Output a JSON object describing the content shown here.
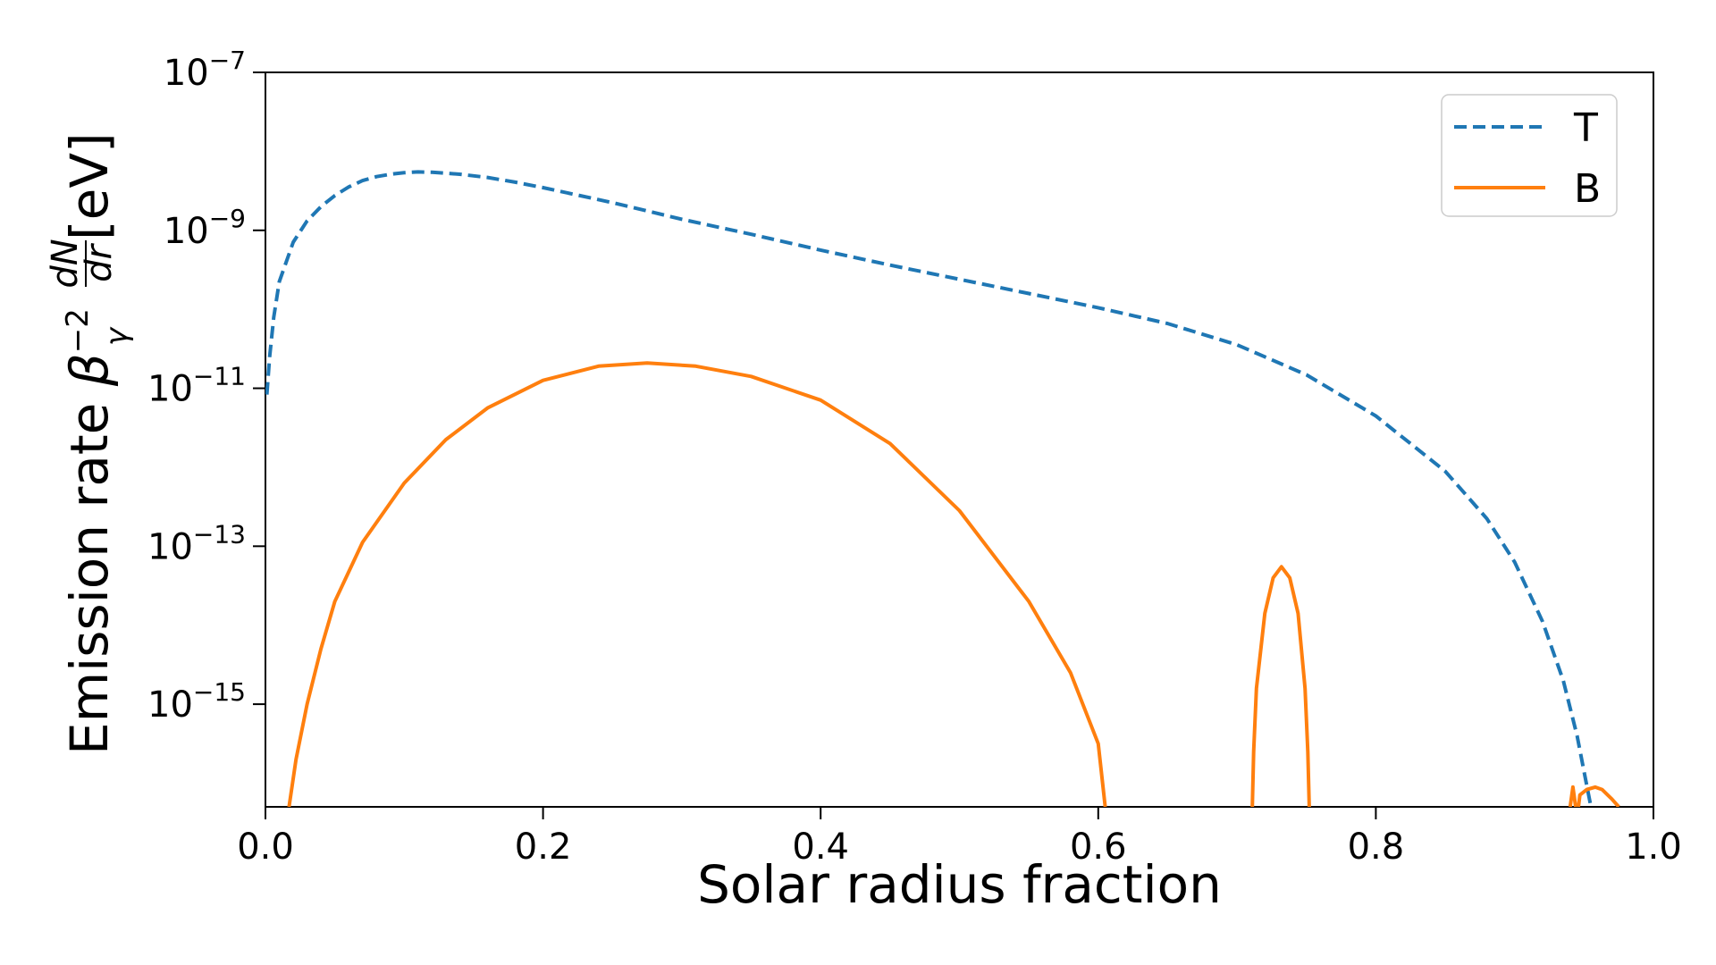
{
  "chart_data": {
    "type": "line",
    "title": "",
    "xlabel": "Solar radius fraction",
    "ylabel": {
      "prefix": "Emission rate ",
      "beta": "β",
      "beta_sub": "γ",
      "beta_sup": "−2",
      "frac_num": "dN",
      "frac_den": "dr",
      "unit": " [eV]"
    },
    "xlim": [
      0.0,
      1.0
    ],
    "ylim_log10": [
      -16.3,
      -7
    ],
    "yscale": "log",
    "x_ticks": [
      "0.0",
      "0.2",
      "0.4",
      "0.6",
      "0.8",
      "1.0"
    ],
    "x_tick_values": [
      0.0,
      0.2,
      0.4,
      0.6,
      0.8,
      1.0
    ],
    "y_ticks": [
      {
        "base": "10",
        "exp": "−7",
        "value_log10": -7
      },
      {
        "base": "10",
        "exp": "−9",
        "value_log10": -9
      },
      {
        "base": "10",
        "exp": "−11",
        "value_log10": -11
      },
      {
        "base": "10",
        "exp": "−13",
        "value_log10": -13
      },
      {
        "base": "10",
        "exp": "−15",
        "value_log10": -15
      }
    ],
    "legend_position": "top-right",
    "series": [
      {
        "name": "T",
        "style": "dashed",
        "color": "#1f77b4",
        "segments": [
          [
            [
              0.001,
              -11.08
            ],
            [
              0.003,
              -10.6
            ],
            [
              0.006,
              -10.1
            ],
            [
              0.01,
              -9.65
            ],
            [
              0.02,
              -9.15
            ],
            [
              0.03,
              -8.88
            ],
            [
              0.04,
              -8.7
            ],
            [
              0.05,
              -8.56
            ],
            [
              0.06,
              -8.45
            ],
            [
              0.07,
              -8.37
            ],
            [
              0.08,
              -8.32
            ],
            [
              0.09,
              -8.29
            ],
            [
              0.1,
              -8.27
            ],
            [
              0.11,
              -8.26
            ],
            [
              0.12,
              -8.265
            ],
            [
              0.14,
              -8.29
            ],
            [
              0.16,
              -8.33
            ],
            [
              0.18,
              -8.39
            ],
            [
              0.2,
              -8.46
            ],
            [
              0.25,
              -8.65
            ],
            [
              0.3,
              -8.86
            ],
            [
              0.35,
              -9.05
            ],
            [
              0.4,
              -9.25
            ],
            [
              0.45,
              -9.44
            ],
            [
              0.5,
              -9.62
            ],
            [
              0.55,
              -9.8
            ],
            [
              0.6,
              -9.98
            ],
            [
              0.65,
              -10.18
            ],
            [
              0.7,
              -10.45
            ],
            [
              0.75,
              -10.83
            ],
            [
              0.8,
              -11.35
            ],
            [
              0.85,
              -12.05
            ],
            [
              0.88,
              -12.65
            ],
            [
              0.9,
              -13.2
            ],
            [
              0.92,
              -13.95
            ],
            [
              0.935,
              -14.7
            ],
            [
              0.945,
              -15.4
            ],
            [
              0.95,
              -15.85
            ],
            [
              0.955,
              -16.3
            ]
          ]
        ]
      },
      {
        "name": "B",
        "style": "solid",
        "color": "#ff7f0e",
        "segments": [
          [
            [
              0.017,
              -16.3
            ],
            [
              0.022,
              -15.7
            ],
            [
              0.03,
              -15.0
            ],
            [
              0.04,
              -14.3
            ],
            [
              0.05,
              -13.7
            ],
            [
              0.07,
              -12.95
            ],
            [
              0.1,
              -12.2
            ],
            [
              0.13,
              -11.65
            ],
            [
              0.16,
              -11.25
            ],
            [
              0.2,
              -10.9
            ],
            [
              0.24,
              -10.72
            ],
            [
              0.275,
              -10.68
            ],
            [
              0.31,
              -10.72
            ],
            [
              0.35,
              -10.85
            ],
            [
              0.4,
              -11.15
            ],
            [
              0.45,
              -11.7
            ],
            [
              0.5,
              -12.55
            ],
            [
              0.55,
              -13.7
            ],
            [
              0.58,
              -14.6
            ],
            [
              0.6,
              -15.5
            ],
            [
              0.605,
              -16.3
            ]
          ],
          [
            [
              0.711,
              -16.3
            ],
            [
              0.712,
              -15.6
            ],
            [
              0.714,
              -14.8
            ],
            [
              0.72,
              -13.85
            ],
            [
              0.726,
              -13.4
            ],
            [
              0.732,
              -13.26
            ],
            [
              0.738,
              -13.4
            ],
            [
              0.744,
              -13.85
            ],
            [
              0.749,
              -14.8
            ],
            [
              0.751,
              -15.6
            ],
            [
              0.752,
              -16.3
            ]
          ],
          [
            [
              0.94,
              -16.3
            ],
            [
              0.942,
              -16.05
            ],
            [
              0.944,
              -16.3
            ]
          ],
          [
            [
              0.946,
              -16.3
            ],
            [
              0.947,
              -16.15
            ],
            [
              0.952,
              -16.08
            ],
            [
              0.958,
              -16.05
            ],
            [
              0.963,
              -16.08
            ],
            [
              0.97,
              -16.2
            ],
            [
              0.975,
              -16.3
            ]
          ]
        ]
      }
    ]
  }
}
